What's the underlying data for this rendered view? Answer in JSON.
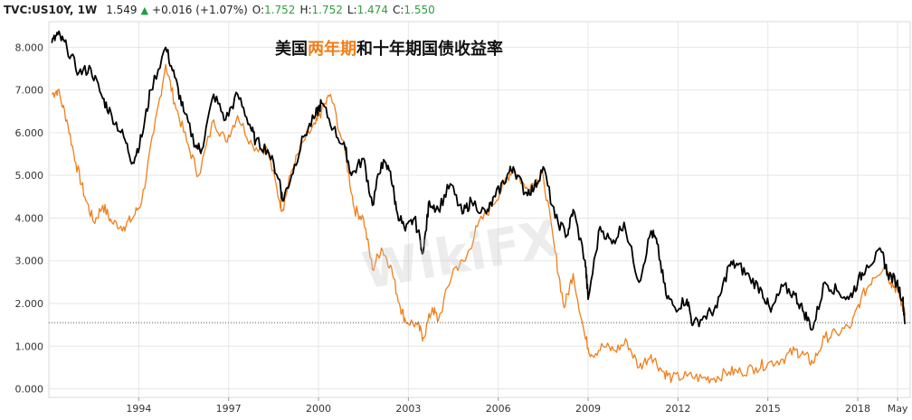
{
  "header": {
    "symbol": "TVC:US10Y, 1W",
    "last": "1.549",
    "change": "+0.016 (+1.07%)",
    "o_label": "O:",
    "o_value": "1.752",
    "h_label": "H:",
    "h_value": "1.752",
    "l_label": "L:",
    "l_value": "1.474",
    "c_label": "C:",
    "c_value": "1.550",
    "up_icon": "triangle-up-icon"
  },
  "title": {
    "part1": "美国",
    "highlight": "两年期",
    "part2": "和十年期国债收益率"
  },
  "watermark": "WikiFX",
  "colors": {
    "ten_year": "#000000",
    "two_year": "#f07f1a",
    "up": "#1e9e3f",
    "value": "#2e9e3f",
    "grid": "#e6e6e6",
    "axis_text": "#333333"
  },
  "chart_data": {
    "type": "line",
    "xlim": [
      1991.0,
      2019.75
    ],
    "ylim": [
      -0.2,
      8.6
    ],
    "x_ticks": [
      {
        "x": 1994,
        "label": "1994"
      },
      {
        "x": 1997,
        "label": "1997"
      },
      {
        "x": 2000,
        "label": "2000"
      },
      {
        "x": 2003,
        "label": "2003"
      },
      {
        "x": 2006,
        "label": "2006"
      },
      {
        "x": 2009,
        "label": "2009"
      },
      {
        "x": 2012,
        "label": "2012"
      },
      {
        "x": 2015,
        "label": "2015"
      },
      {
        "x": 2018,
        "label": "2018"
      },
      {
        "x": 2019.33,
        "label": "May"
      }
    ],
    "y_ticks": [
      {
        "y": 0,
        "label": "0.000"
      },
      {
        "y": 1,
        "label": "1.000"
      },
      {
        "y": 2,
        "label": "2.000"
      },
      {
        "y": 3,
        "label": "3.000"
      },
      {
        "y": 4,
        "label": "4.000"
      },
      {
        "y": 5,
        "label": "5.000"
      },
      {
        "y": 6,
        "label": "6.000"
      },
      {
        "y": 7,
        "label": "7.000"
      },
      {
        "y": 8,
        "label": "8.000"
      }
    ],
    "reference_line": 1.55,
    "grid": true,
    "series": [
      {
        "key": "ten_year",
        "points": [
          [
            1991.1,
            8.1
          ],
          [
            1991.3,
            8.3
          ],
          [
            1991.6,
            8.0
          ],
          [
            1992.0,
            7.4
          ],
          [
            1992.4,
            7.5
          ],
          [
            1992.8,
            6.8
          ],
          [
            1993.1,
            6.4
          ],
          [
            1993.5,
            5.9
          ],
          [
            1993.8,
            5.3
          ],
          [
            1994.1,
            5.9
          ],
          [
            1994.4,
            7.0
          ],
          [
            1994.9,
            8.0
          ],
          [
            1995.2,
            7.3
          ],
          [
            1995.5,
            6.5
          ],
          [
            1995.9,
            5.7
          ],
          [
            1996.1,
            5.6
          ],
          [
            1996.5,
            6.9
          ],
          [
            1996.9,
            6.3
          ],
          [
            1997.3,
            6.9
          ],
          [
            1997.7,
            6.2
          ],
          [
            1997.9,
            5.8
          ],
          [
            1998.3,
            5.6
          ],
          [
            1998.7,
            4.9
          ],
          [
            1998.8,
            4.4
          ],
          [
            1999.1,
            5.0
          ],
          [
            1999.5,
            5.9
          ],
          [
            1999.9,
            6.4
          ],
          [
            2000.1,
            6.7
          ],
          [
            2000.5,
            6.1
          ],
          [
            2000.9,
            5.6
          ],
          [
            2001.1,
            5.0
          ],
          [
            2001.5,
            5.4
          ],
          [
            2001.8,
            4.3
          ],
          [
            2002.1,
            5.3
          ],
          [
            2002.4,
            5.1
          ],
          [
            2002.6,
            4.2
          ],
          [
            2002.9,
            3.7
          ],
          [
            2003.2,
            4.0
          ],
          [
            2003.5,
            3.2
          ],
          [
            2003.7,
            4.4
          ],
          [
            2004.0,
            4.2
          ],
          [
            2004.4,
            4.8
          ],
          [
            2004.8,
            4.1
          ],
          [
            2005.1,
            4.4
          ],
          [
            2005.6,
            4.1
          ],
          [
            2005.9,
            4.5
          ],
          [
            2006.3,
            5.0
          ],
          [
            2006.5,
            5.2
          ],
          [
            2006.9,
            4.6
          ],
          [
            2007.2,
            4.7
          ],
          [
            2007.5,
            5.2
          ],
          [
            2007.9,
            4.0
          ],
          [
            2008.3,
            3.6
          ],
          [
            2008.5,
            4.2
          ],
          [
            2008.9,
            3.0
          ],
          [
            2009.0,
            2.1
          ],
          [
            2009.4,
            3.8
          ],
          [
            2009.8,
            3.4
          ],
          [
            2010.2,
            3.9
          ],
          [
            2010.7,
            2.5
          ],
          [
            2011.1,
            3.7
          ],
          [
            2011.3,
            3.4
          ],
          [
            2011.6,
            2.2
          ],
          [
            2011.9,
            1.9
          ],
          [
            2012.3,
            2.1
          ],
          [
            2012.5,
            1.5
          ],
          [
            2012.9,
            1.7
          ],
          [
            2013.3,
            1.9
          ],
          [
            2013.7,
            2.9
          ],
          [
            2014.0,
            2.9
          ],
          [
            2014.4,
            2.6
          ],
          [
            2014.8,
            2.3
          ],
          [
            2015.1,
            1.8
          ],
          [
            2015.5,
            2.4
          ],
          [
            2015.9,
            2.2
          ],
          [
            2016.2,
            1.8
          ],
          [
            2016.5,
            1.4
          ],
          [
            2016.9,
            2.5
          ],
          [
            2017.3,
            2.3
          ],
          [
            2017.7,
            2.1
          ],
          [
            2018.0,
            2.5
          ],
          [
            2018.3,
            2.9
          ],
          [
            2018.8,
            3.2
          ],
          [
            2019.0,
            2.7
          ],
          [
            2019.3,
            2.5
          ],
          [
            2019.5,
            2.1
          ],
          [
            2019.58,
            1.55
          ]
        ]
      },
      {
        "key": "two_year",
        "points": [
          [
            1991.1,
            6.9
          ],
          [
            1991.3,
            7.0
          ],
          [
            1991.6,
            6.3
          ],
          [
            1991.9,
            5.3
          ],
          [
            1992.2,
            4.5
          ],
          [
            1992.5,
            3.9
          ],
          [
            1992.8,
            4.3
          ],
          [
            1993.1,
            3.9
          ],
          [
            1993.5,
            3.8
          ],
          [
            1993.8,
            4.0
          ],
          [
            1994.1,
            4.4
          ],
          [
            1994.5,
            6.0
          ],
          [
            1994.9,
            7.6
          ],
          [
            1995.2,
            6.7
          ],
          [
            1995.6,
            5.8
          ],
          [
            1996.0,
            5.0
          ],
          [
            1996.5,
            6.3
          ],
          [
            1996.9,
            5.8
          ],
          [
            1997.3,
            6.4
          ],
          [
            1997.8,
            5.7
          ],
          [
            1998.3,
            5.6
          ],
          [
            1998.7,
            4.4
          ],
          [
            1998.8,
            4.2
          ],
          [
            1999.1,
            5.1
          ],
          [
            1999.5,
            5.8
          ],
          [
            1999.9,
            6.2
          ],
          [
            2000.1,
            6.5
          ],
          [
            2000.4,
            6.9
          ],
          [
            2000.9,
            5.5
          ],
          [
            2001.2,
            4.2
          ],
          [
            2001.5,
            4.0
          ],
          [
            2001.8,
            2.8
          ],
          [
            2002.1,
            3.3
          ],
          [
            2002.4,
            2.9
          ],
          [
            2002.7,
            2.0
          ],
          [
            2002.9,
            1.6
          ],
          [
            2003.3,
            1.5
          ],
          [
            2003.5,
            1.2
          ],
          [
            2003.8,
            1.9
          ],
          [
            2004.0,
            1.6
          ],
          [
            2004.5,
            2.8
          ],
          [
            2004.9,
            3.0
          ],
          [
            2005.3,
            3.8
          ],
          [
            2005.8,
            4.3
          ],
          [
            2006.2,
            4.8
          ],
          [
            2006.5,
            5.2
          ],
          [
            2006.9,
            4.7
          ],
          [
            2007.3,
            4.9
          ],
          [
            2007.5,
            5.0
          ],
          [
            2007.9,
            3.2
          ],
          [
            2008.2,
            1.9
          ],
          [
            2008.5,
            2.7
          ],
          [
            2008.9,
            1.2
          ],
          [
            2009.1,
            0.8
          ],
          [
            2009.5,
            1.0
          ],
          [
            2009.9,
            0.9
          ],
          [
            2010.3,
            1.1
          ],
          [
            2010.7,
            0.5
          ],
          [
            2011.1,
            0.8
          ],
          [
            2011.5,
            0.4
          ],
          [
            2011.8,
            0.25
          ],
          [
            2012.3,
            0.3
          ],
          [
            2012.8,
            0.25
          ],
          [
            2013.2,
            0.25
          ],
          [
            2013.7,
            0.4
          ],
          [
            2014.1,
            0.4
          ],
          [
            2014.6,
            0.5
          ],
          [
            2015.0,
            0.6
          ],
          [
            2015.5,
            0.7
          ],
          [
            2015.9,
            0.9
          ],
          [
            2016.2,
            0.8
          ],
          [
            2016.5,
            0.6
          ],
          [
            2016.9,
            1.2
          ],
          [
            2017.3,
            1.3
          ],
          [
            2017.8,
            1.5
          ],
          [
            2018.1,
            2.1
          ],
          [
            2018.5,
            2.6
          ],
          [
            2018.9,
            2.9
          ],
          [
            2019.1,
            2.5
          ],
          [
            2019.35,
            2.3
          ],
          [
            2019.5,
            1.9
          ],
          [
            2019.58,
            1.8
          ]
        ]
      }
    ]
  }
}
